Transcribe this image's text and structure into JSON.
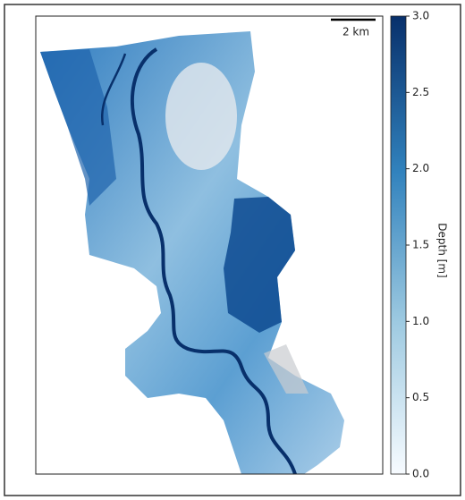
{
  "map": {
    "scale_bar": "2 km",
    "colorbar": {
      "label": "Depth [m]",
      "lim": [
        0,
        3
      ],
      "ticks": [
        {
          "value": 0,
          "label": "0.0"
        },
        0.5,
        {
          "value": 1,
          "label": "1.0"
        },
        1.5,
        {
          "value": 2,
          "label": "2.0"
        },
        2.5,
        {
          "value": 3,
          "label": "3.0"
        }
      ]
    }
  }
}
